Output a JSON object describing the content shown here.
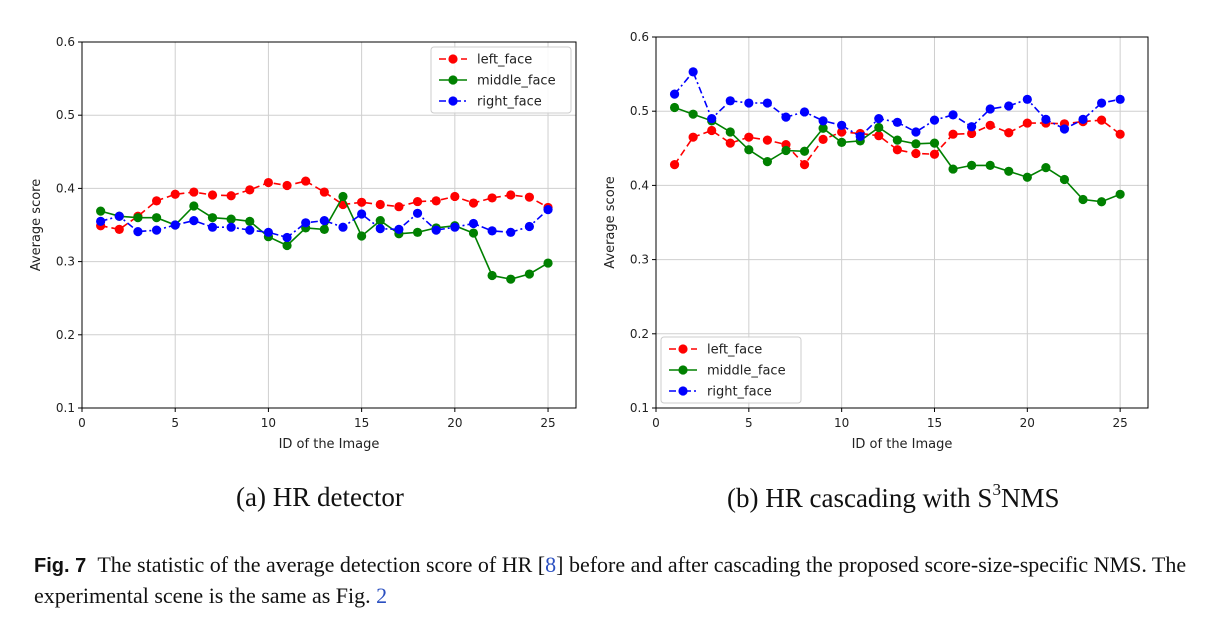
{
  "chart_data": [
    {
      "type": "line",
      "panel": "(a)",
      "xlabel": "ID of the Image",
      "ylabel": "Average score",
      "xlim": [
        0,
        26.5
      ],
      "ylim": [
        0.1,
        0.6
      ],
      "xticks": [
        0,
        5,
        10,
        15,
        20,
        25
      ],
      "yticks": [
        0.1,
        0.2,
        0.3,
        0.4,
        0.5,
        0.6
      ],
      "grid": true,
      "legend": "top-right",
      "x": [
        1,
        2,
        3,
        4,
        5,
        6,
        7,
        8,
        9,
        10,
        11,
        12,
        13,
        14,
        15,
        16,
        17,
        18,
        19,
        20,
        21,
        22,
        23,
        24,
        25
      ],
      "series": [
        {
          "name": "left_face",
          "color": "#ff0000",
          "dash": "dashed",
          "values": [
            0.349,
            0.344,
            0.362,
            0.383,
            0.392,
            0.395,
            0.391,
            0.39,
            0.398,
            0.408,
            0.404,
            0.41,
            0.395,
            0.378,
            0.381,
            0.378,
            0.375,
            0.382,
            0.383,
            0.389,
            0.38,
            0.387,
            0.391,
            0.388,
            0.374
          ]
        },
        {
          "name": "middle_face",
          "color": "#008000",
          "dash": "solid",
          "values": [
            0.369,
            0.362,
            0.36,
            0.36,
            0.35,
            0.376,
            0.36,
            0.358,
            0.355,
            0.334,
            0.322,
            0.346,
            0.344,
            0.389,
            0.335,
            0.356,
            0.338,
            0.34,
            0.346,
            0.349,
            0.339,
            0.281,
            0.276,
            0.283,
            0.298
          ]
        },
        {
          "name": "right_face",
          "color": "#0000ff",
          "dash": "dashdot",
          "values": [
            0.355,
            0.362,
            0.341,
            0.343,
            0.35,
            0.356,
            0.347,
            0.347,
            0.343,
            0.34,
            0.333,
            0.353,
            0.356,
            0.347,
            0.365,
            0.345,
            0.344,
            0.366,
            0.343,
            0.347,
            0.352,
            0.342,
            0.34,
            0.348,
            0.371
          ]
        }
      ]
    },
    {
      "type": "line",
      "panel": "(b)",
      "xlabel": "ID of the Image",
      "ylabel": "Average score",
      "xlim": [
        0,
        26.5
      ],
      "ylim": [
        0.1,
        0.6
      ],
      "xticks": [
        0,
        5,
        10,
        15,
        20,
        25
      ],
      "yticks": [
        0.1,
        0.2,
        0.3,
        0.4,
        0.5,
        0.6
      ],
      "grid": true,
      "legend": "bottom-left",
      "x": [
        1,
        2,
        3,
        4,
        5,
        6,
        7,
        8,
        9,
        10,
        11,
        12,
        13,
        14,
        15,
        16,
        17,
        18,
        19,
        20,
        21,
        22,
        23,
        24,
        25
      ],
      "series": [
        {
          "name": "left_face",
          "color": "#ff0000",
          "dash": "dashed",
          "values": [
            0.428,
            0.465,
            0.474,
            0.457,
            0.465,
            0.461,
            0.455,
            0.428,
            0.462,
            0.472,
            0.47,
            0.467,
            0.448,
            0.443,
            0.442,
            0.469,
            0.47,
            0.481,
            0.471,
            0.484,
            0.484,
            0.483,
            0.486,
            0.488,
            0.469
          ]
        },
        {
          "name": "middle_face",
          "color": "#008000",
          "dash": "solid",
          "values": [
            0.505,
            0.496,
            0.487,
            0.472,
            0.448,
            0.432,
            0.447,
            0.446,
            0.477,
            0.458,
            0.46,
            0.478,
            0.461,
            0.456,
            0.457,
            0.422,
            0.427,
            0.427,
            0.419,
            0.411,
            0.424,
            0.408,
            0.381,
            0.378,
            0.388
          ]
        },
        {
          "name": "right_face",
          "color": "#0000ff",
          "dash": "dashdot",
          "values": [
            0.523,
            0.553,
            0.49,
            0.514,
            0.511,
            0.511,
            0.492,
            0.499,
            0.487,
            0.481,
            0.466,
            0.49,
            0.485,
            0.472,
            0.488,
            0.495,
            0.479,
            0.503,
            0.507,
            0.516,
            0.489,
            0.476,
            0.489,
            0.511,
            0.516
          ]
        }
      ]
    }
  ],
  "subcaptions": {
    "a": "(a)  HR detector",
    "b_prefix": "(b)  HR cascading with S",
    "b_sup": "3",
    "b_suffix": "NMS"
  },
  "caption": {
    "label": "Fig. 7",
    "text_1": "The statistic of the average detection score of HR [",
    "ref_1": "8",
    "text_2": "] before and after cascading the proposed score-size-specific NMS. The experimental scene is the same as Fig. ",
    "ref_2": "2"
  }
}
